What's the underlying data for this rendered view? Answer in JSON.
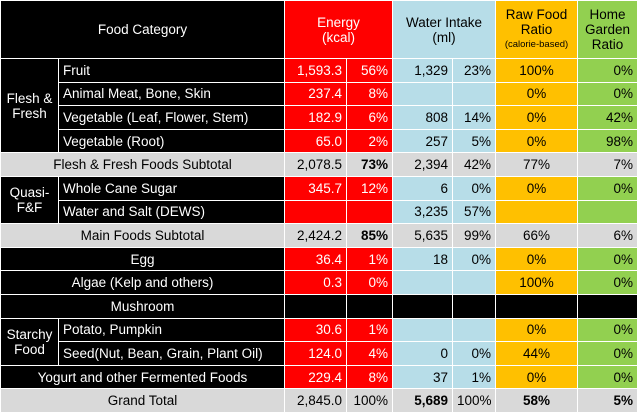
{
  "header": {
    "food_category": "Food Category",
    "energy": "Energy",
    "energy_unit": "(kcal)",
    "water": "Water Intake",
    "water_unit": "(ml)",
    "raw_food": "Raw Food Ratio",
    "raw_food_note": "(calorie-based)",
    "home_garden": "Home Garden Ratio"
  },
  "groups": {
    "flesh": "Flesh & Fresh",
    "quasi": "Quasi-F&F",
    "starchy": "Starchy Food"
  },
  "rows": {
    "fruit": {
      "label": "Fruit",
      "kcal": "1,593.3",
      "kcal_pct": "56%",
      "ml": "1,329",
      "ml_pct": "23%",
      "raw": "100%",
      "home": "0%"
    },
    "meat": {
      "label": "Animal Meat, Bone, Skin",
      "kcal": "237.4",
      "kcal_pct": "8%",
      "ml": "",
      "ml_pct": "",
      "raw": "0%",
      "home": "0%"
    },
    "veg_leaf": {
      "label": "Vegetable (Leaf, Flower, Stem)",
      "kcal": "182.9",
      "kcal_pct": "6%",
      "ml": "808",
      "ml_pct": "14%",
      "raw": "0%",
      "home": "42%"
    },
    "veg_root": {
      "label": "Vegetable (Root)",
      "kcal": "65.0",
      "kcal_pct": "2%",
      "ml": "257",
      "ml_pct": "5%",
      "raw": "0%",
      "home": "98%"
    },
    "flesh_subtotal": {
      "label": "Flesh & Fresh Foods Subtotal",
      "kcal": "2,078.5",
      "kcal_pct": "73%",
      "ml": "2,394",
      "ml_pct": "42%",
      "raw": "77%",
      "home": "7%"
    },
    "cane_sugar": {
      "label": "Whole Cane Sugar",
      "kcal": "345.7",
      "kcal_pct": "12%",
      "ml": "6",
      "ml_pct": "0%",
      "raw": "0%",
      "home": "0%"
    },
    "water_salt": {
      "label": "Water and Salt (DEWS)",
      "kcal": "",
      "kcal_pct": "",
      "ml": "3,235",
      "ml_pct": "57%",
      "raw": "",
      "home": ""
    },
    "main_subtotal": {
      "label": "Main Foods Subtotal",
      "kcal": "2,424.2",
      "kcal_pct": "85%",
      "ml": "5,635",
      "ml_pct": "99%",
      "raw": "66%",
      "home": "6%"
    },
    "egg": {
      "label": "Egg",
      "kcal": "36.4",
      "kcal_pct": "1%",
      "ml": "18",
      "ml_pct": "0%",
      "raw": "0%",
      "home": "0%"
    },
    "algae": {
      "label": "Algae (Kelp and others)",
      "kcal": "0.3",
      "kcal_pct": "0%",
      "ml": "",
      "ml_pct": "",
      "raw": "100%",
      "home": "0%"
    },
    "mushroom": {
      "label": "Mushroom",
      "kcal": "",
      "kcal_pct": "",
      "ml": "",
      "ml_pct": "",
      "raw": "",
      "home": ""
    },
    "potato": {
      "label": "Potato, Pumpkin",
      "kcal": "30.6",
      "kcal_pct": "1%",
      "ml": "",
      "ml_pct": "",
      "raw": "0%",
      "home": "0%"
    },
    "seed": {
      "label": "Seed(Nut, Bean, Grain, Plant Oil)",
      "kcal": "124.0",
      "kcal_pct": "4%",
      "ml": "0",
      "ml_pct": "0%",
      "raw": "44%",
      "home": "0%"
    },
    "yogurt": {
      "label": "Yogurt and other Fermented Foods",
      "kcal": "229.4",
      "kcal_pct": "8%",
      "ml": "37",
      "ml_pct": "1%",
      "raw": "0%",
      "home": "0%"
    },
    "grand_total": {
      "label": "Grand Total",
      "kcal": "2,845.0",
      "kcal_pct": "100%",
      "ml": "5,689",
      "ml_pct": "100%",
      "raw": "58%",
      "home": "5%"
    }
  }
}
